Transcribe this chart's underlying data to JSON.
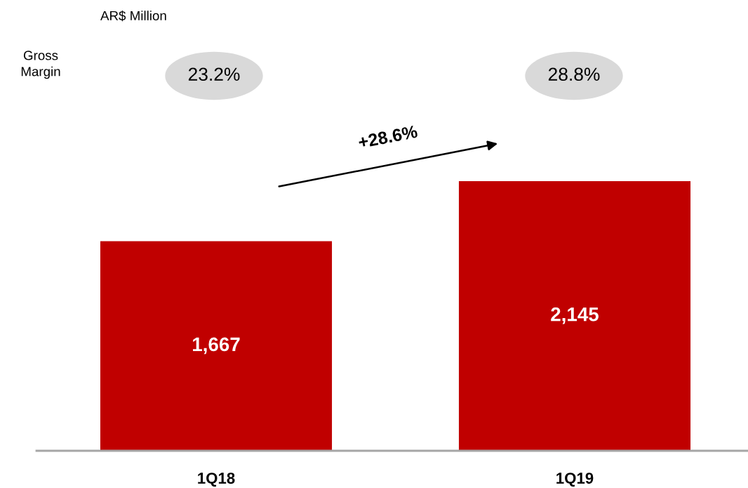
{
  "chart_data": {
    "type": "bar",
    "categories": [
      "1Q18",
      "1Q19"
    ],
    "values": [
      1667,
      2145
    ],
    "color": "#c00000",
    "value_labels": [
      "1,667",
      "2,145"
    ],
    "annotations": [
      "AR$ Million",
      "Gross Margin",
      "23.2%",
      "28.8%",
      "+28.6%"
    ]
  }
}
